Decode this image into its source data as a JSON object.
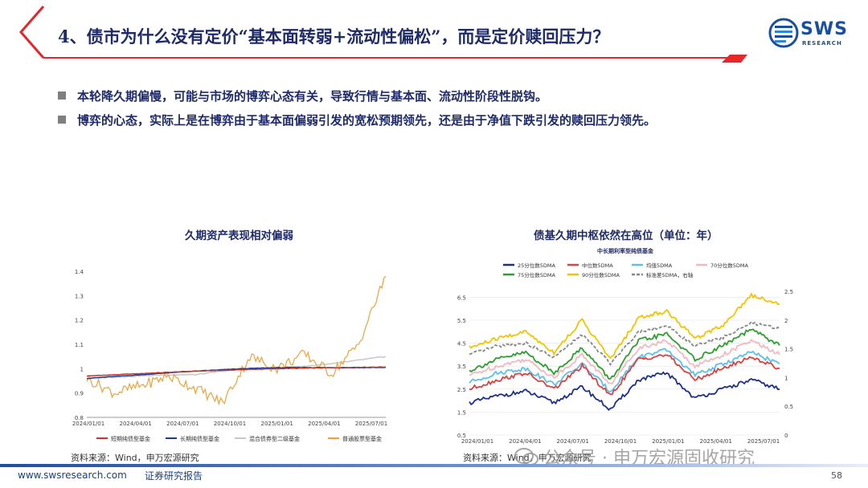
{
  "slide": {
    "title": "4、债市为什么没有定价“基本面转弱+流动性偏松”，而是定价赎回压力？",
    "accent_color": "#e8262a",
    "title_color": "#1f2a6b"
  },
  "logo": {
    "name": "SWS",
    "sub": "RESEARCH"
  },
  "bullets": [
    "本轮降久期偏慢，可能与市场的博弈心态有关，导致行情与基本面、流动性阶段性脱钩。",
    "博弈的心态，实际上是在博弈由于基本面偏弱引发的宽松预期领先，还是由于净值下跌引发的赎回压力领先。"
  ],
  "left_chart": {
    "heading": "久期资产表现相对偏弱",
    "source": "资料来源：Wind，申万宏源研究"
  },
  "right_chart": {
    "heading": "债基久期中枢依然在高位（单位：年）",
    "source": "资料来源：Wind，申万宏源研究"
  },
  "footer": {
    "url": "www.swsresearch.com",
    "report": "证券研究报告",
    "page": "58"
  },
  "watermark": "公众号 · 申万宏源固收研究",
  "chart_data": [
    {
      "type": "line",
      "x_ticks": [
        "2024/01/01",
        "2024/04/01",
        "2024/07/01",
        "2024/10/01",
        "2025/01/01",
        "2025/04/01",
        "2025/07/01"
      ],
      "y_ticks": [
        "0.8",
        "0.9",
        "1",
        "1.1",
        "1.2",
        "1.3",
        "1.4"
      ],
      "ylim": [
        0.8,
        1.4
      ],
      "grid": false,
      "legend_position": "bottom",
      "series": [
        {
          "name": "短期纯债型基金",
          "color": "#c0392b",
          "values": [
            0.97,
            0.975,
            0.98,
            0.985,
            0.99,
            0.993,
            0.997,
            1.0,
            1.002,
            1.004,
            1.006,
            1.007
          ]
        },
        {
          "name": "长期纯债型基金",
          "color": "#1f3a93",
          "values": [
            0.96,
            0.968,
            0.975,
            0.983,
            0.99,
            0.996,
            1.001,
            1.004,
            1.005,
            1.004,
            1.004,
            1.005
          ]
        },
        {
          "name": "混合债券型二级基金",
          "color": "#c8c8c8",
          "values": [
            0.96,
            0.965,
            0.97,
            0.975,
            0.975,
            0.99,
            1.0,
            1.005,
            1.01,
            1.02,
            1.035,
            1.05
          ]
        },
        {
          "name": "普通股票型基金",
          "color": "#f2a13a",
          "values": [
            0.96,
            0.9,
            0.93,
            0.97,
            0.92,
            0.86,
            1.05,
            1.0,
            1.06,
            0.98,
            1.1,
            1.38
          ]
        }
      ]
    },
    {
      "type": "line",
      "title": "中长期利率型纯债基金",
      "x_ticks": [
        "2024/01/01",
        "2024/04/01",
        "2024/07/01",
        "2024/10/01",
        "2025/01/01",
        "2025/04/01",
        "2025/07/01"
      ],
      "y_ticks_left": [
        "0.5",
        "1.5",
        "2.5",
        "3.5",
        "4.5",
        "5.5",
        "6.5"
      ],
      "y_ticks_right": [
        "0",
        "0.5",
        "1",
        "1.5",
        "2",
        "2.5"
      ],
      "ylim_left": [
        0.5,
        7.0
      ],
      "ylim_right": [
        0,
        2.6
      ],
      "grid": true,
      "legend_position": "top",
      "series": [
        {
          "name": "25分位数5DMA",
          "color": "#1f2f8f",
          "values": [
            1.9,
            2.2,
            2.4,
            1.9,
            2.6,
            1.6,
            2.9,
            3.2,
            2.1,
            2.5,
            2.9,
            2.5
          ]
        },
        {
          "name": "中位数5DMA",
          "color": "#e04040",
          "values": [
            2.5,
            2.9,
            3.2,
            2.5,
            3.5,
            2.2,
            3.8,
            4.0,
            2.9,
            3.4,
            3.9,
            3.4
          ]
        },
        {
          "name": "均值5DMA",
          "color": "#5bc0eb",
          "values": [
            2.8,
            3.2,
            3.4,
            2.7,
            3.6,
            2.4,
            3.9,
            4.2,
            3.1,
            3.6,
            4.1,
            3.6
          ]
        },
        {
          "name": "70分位数5DMA",
          "color": "#f4b8c0",
          "values": [
            3.1,
            3.5,
            3.8,
            3.0,
            4.0,
            2.7,
            4.3,
            4.6,
            3.5,
            4.0,
            4.6,
            4.0
          ]
        },
        {
          "name": "75分位数5DMA",
          "color": "#2ca02c",
          "values": [
            3.3,
            3.8,
            4.1,
            3.2,
            4.3,
            2.9,
            4.6,
            4.9,
            3.8,
            4.4,
            5.1,
            4.4
          ]
        },
        {
          "name": "90分位数5DMA",
          "color": "#f5c400",
          "values": [
            4.3,
            4.7,
            5.0,
            4.1,
            5.5,
            3.8,
            5.6,
            5.9,
            4.7,
            5.3,
            6.6,
            6.2
          ]
        },
        {
          "name": "标准差5DMA，右轴",
          "color": "#888888",
          "axis": "right",
          "values": [
            1.4,
            1.55,
            1.6,
            1.35,
            1.75,
            1.25,
            1.8,
            1.9,
            1.55,
            1.7,
            1.95,
            1.85
          ]
        }
      ]
    }
  ]
}
